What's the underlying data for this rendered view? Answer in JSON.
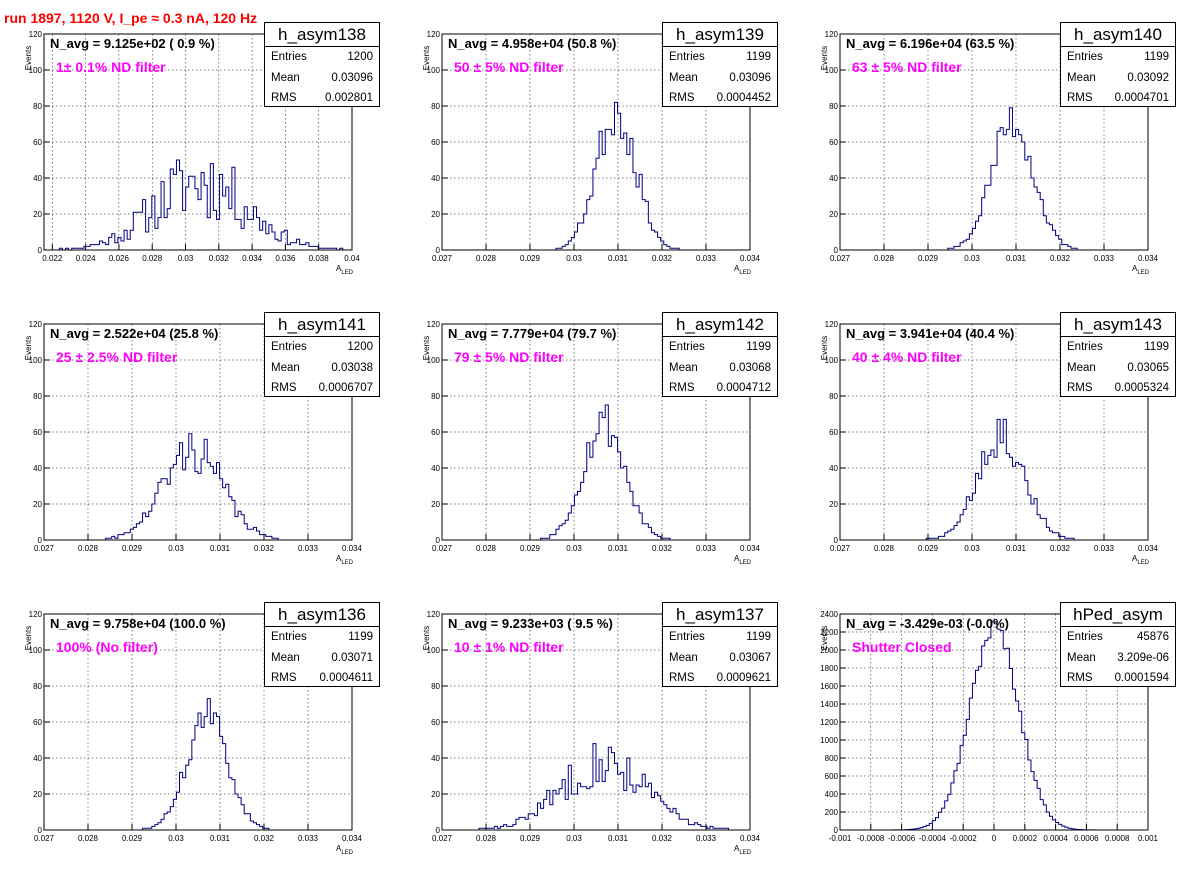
{
  "page_title": "run 1897,  1120 V, I_pe ≈ 0.3 nA, 120 Hz",
  "stat_labels": {
    "entries": "Entries",
    "mean": "Mean",
    "rms": "RMS"
  },
  "colors": {
    "histogram": "#000080",
    "grid": "#000000",
    "filter_text": "#ff00ff",
    "title_text": "#ff0000"
  },
  "chart_data": [
    {
      "type": "bar",
      "hist_name": "h_asym138",
      "navg": "N_avg = 9.125e+02 ( 0.9 %)",
      "filter": "1± 0.1% ND filter",
      "entries": "1200",
      "mean": "0.03096",
      "rms": "0.002801",
      "xlabel": "A",
      "xlabel_sub": "LED",
      "ylabel": "Events",
      "xlim": [
        0.0215,
        0.04
      ],
      "ylim": [
        0,
        120
      ],
      "xticks": [
        0.022,
        0.024,
        0.026,
        0.028,
        0.03,
        0.032,
        0.034,
        0.036,
        0.038,
        0.04
      ],
      "xtick_labels": [
        "0.022",
        "0.024",
        "0.026",
        "0.028",
        "0.03",
        "0.032",
        "0.034",
        "0.036",
        "0.038",
        "0.04"
      ],
      "yticks": [
        0,
        20,
        40,
        60,
        80,
        100,
        120
      ],
      "ytick_labels": [
        "0",
        "20",
        "40",
        "60",
        "80",
        "100",
        "120"
      ],
      "grid": true,
      "peak": {
        "center": 0.0309,
        "sigma": 0.0028,
        "height": 38,
        "noise": 0.35,
        "seed": 11
      }
    },
    {
      "type": "bar",
      "hist_name": "h_asym139",
      "navg": "N_avg = 4.958e+04 (50.8 %)",
      "filter": "50 ± 5% ND filter",
      "entries": "1199",
      "mean": "0.03096",
      "rms": "0.0004452",
      "xlabel": "A",
      "xlabel_sub": "LED",
      "ylabel": "Events",
      "xlim": [
        0.027,
        0.034
      ],
      "ylim": [
        0,
        120
      ],
      "xticks": [
        0.027,
        0.028,
        0.029,
        0.03,
        0.031,
        0.032,
        0.033,
        0.034
      ],
      "xtick_labels": [
        "0.027",
        "0.028",
        "0.029",
        "0.03",
        "0.031",
        "0.032",
        "0.033",
        "0.034"
      ],
      "yticks": [
        0,
        20,
        40,
        60,
        80,
        100,
        120
      ],
      "ytick_labels": [
        "0",
        "20",
        "40",
        "60",
        "80",
        "100",
        "120"
      ],
      "grid": true,
      "peak": {
        "center": 0.03096,
        "sigma": 0.000445,
        "height": 78,
        "noise": 0.12,
        "seed": 23
      }
    },
    {
      "type": "bar",
      "hist_name": "h_asym140",
      "navg": "N_avg = 6.196e+04 (63.5 %)",
      "filter": "63 ± 5% ND filter",
      "entries": "1199",
      "mean": "0.03092",
      "rms": "0.0004701",
      "xlabel": "A",
      "xlabel_sub": "LED",
      "ylabel": "Events",
      "xlim": [
        0.027,
        0.034
      ],
      "ylim": [
        0,
        120
      ],
      "xticks": [
        0.027,
        0.028,
        0.029,
        0.03,
        0.031,
        0.032,
        0.033,
        0.034
      ],
      "xtick_labels": [
        "0.027",
        "0.028",
        "0.029",
        "0.03",
        "0.031",
        "0.032",
        "0.033",
        "0.034"
      ],
      "yticks": [
        0,
        20,
        40,
        60,
        80,
        100,
        120
      ],
      "ytick_labels": [
        "0",
        "20",
        "40",
        "60",
        "80",
        "100",
        "120"
      ],
      "grid": true,
      "peak": {
        "center": 0.03092,
        "sigma": 0.00047,
        "height": 72,
        "noise": 0.1,
        "seed": 37
      }
    },
    {
      "type": "bar",
      "hist_name": "h_asym141",
      "navg": "N_avg = 2.522e+04 (25.8 %)",
      "filter": "25 ± 2.5% ND filter",
      "entries": "1200",
      "mean": "0.03038",
      "rms": "0.0006707",
      "xlabel": "A",
      "xlabel_sub": "LED",
      "ylabel": "Events",
      "xlim": [
        0.027,
        0.034
      ],
      "ylim": [
        0,
        120
      ],
      "xticks": [
        0.027,
        0.028,
        0.029,
        0.03,
        0.031,
        0.032,
        0.033,
        0.034
      ],
      "xtick_labels": [
        "0.027",
        "0.028",
        "0.029",
        "0.03",
        "0.031",
        "0.032",
        "0.033",
        "0.034"
      ],
      "yticks": [
        0,
        20,
        40,
        60,
        80,
        100,
        120
      ],
      "ytick_labels": [
        "0",
        "20",
        "40",
        "60",
        "80",
        "100",
        "120"
      ],
      "grid": true,
      "peak": {
        "center": 0.03038,
        "sigma": 0.00067,
        "height": 50,
        "noise": 0.16,
        "seed": 41
      }
    },
    {
      "type": "bar",
      "hist_name": "h_asym142",
      "navg": "N_avg = 7.779e+04 (79.7 %)",
      "filter": "79 ± 5% ND filter",
      "entries": "1199",
      "mean": "0.03068",
      "rms": "0.0004712",
      "xlabel": "A",
      "xlabel_sub": "LED",
      "ylabel": "Events",
      "xlim": [
        0.027,
        0.034
      ],
      "ylim": [
        0,
        120
      ],
      "xticks": [
        0.027,
        0.028,
        0.029,
        0.03,
        0.031,
        0.032,
        0.033,
        0.034
      ],
      "xtick_labels": [
        "0.027",
        "0.028",
        "0.029",
        "0.03",
        "0.031",
        "0.032",
        "0.033",
        "0.034"
      ],
      "yticks": [
        0,
        20,
        40,
        60,
        80,
        100,
        120
      ],
      "ytick_labels": [
        "0",
        "20",
        "40",
        "60",
        "80",
        "100",
        "120"
      ],
      "grid": true,
      "peak": {
        "center": 0.03068,
        "sigma": 0.00047,
        "height": 66,
        "noise": 0.12,
        "seed": 53
      }
    },
    {
      "type": "bar",
      "hist_name": "h_asym143",
      "navg": "N_avg = 3.941e+04 (40.4 %)",
      "filter": "40 ± 4% ND filter",
      "entries": "1199",
      "mean": "0.03065",
      "rms": "0.0005324",
      "xlabel": "A",
      "xlabel_sub": "LED",
      "ylabel": "Events",
      "xlim": [
        0.027,
        0.034
      ],
      "ylim": [
        0,
        120
      ],
      "xticks": [
        0.027,
        0.028,
        0.029,
        0.03,
        0.031,
        0.032,
        0.033,
        0.034
      ],
      "xtick_labels": [
        "0.027",
        "0.028",
        "0.029",
        "0.03",
        "0.031",
        "0.032",
        "0.033",
        "0.034"
      ],
      "yticks": [
        0,
        20,
        40,
        60,
        80,
        100,
        120
      ],
      "ytick_labels": [
        "0",
        "20",
        "40",
        "60",
        "80",
        "100",
        "120"
      ],
      "grid": true,
      "peak": {
        "center": 0.03065,
        "sigma": 0.00053,
        "height": 60,
        "noise": 0.14,
        "seed": 67
      }
    },
    {
      "type": "bar",
      "hist_name": "h_asym136",
      "navg": "N_avg = 9.758e+04 (100.0 %)",
      "filter": "100% (No filter)",
      "entries": "1199",
      "mean": "0.03071",
      "rms": "0.0004611",
      "xlabel": "A",
      "xlabel_sub": "LED",
      "ylabel": "Events",
      "xlim": [
        0.027,
        0.034
      ],
      "ylim": [
        0,
        120
      ],
      "xticks": [
        0.027,
        0.028,
        0.029,
        0.03,
        0.031,
        0.032,
        0.033,
        0.034
      ],
      "xtick_labels": [
        "0.027",
        "0.028",
        "0.029",
        "0.03",
        "0.031",
        "0.032",
        "0.033",
        "0.034"
      ],
      "yticks": [
        0,
        20,
        40,
        60,
        80,
        100,
        120
      ],
      "ytick_labels": [
        "0",
        "20",
        "40",
        "60",
        "80",
        "100",
        "120"
      ],
      "grid": true,
      "peak": {
        "center": 0.03071,
        "sigma": 0.00046,
        "height": 64,
        "noise": 0.1,
        "seed": 71
      }
    },
    {
      "type": "bar",
      "hist_name": "h_asym137",
      "navg": "N_avg = 9.233e+03 ( 9.5 %)",
      "filter": "10 ± 1% ND filter",
      "entries": "1199",
      "mean": "0.03067",
      "rms": "0.0009621",
      "xlabel": "A",
      "xlabel_sub": "LED",
      "ylabel": "Events",
      "xlim": [
        0.027,
        0.034
      ],
      "ylim": [
        0,
        120
      ],
      "xticks": [
        0.027,
        0.028,
        0.029,
        0.03,
        0.031,
        0.032,
        0.033,
        0.034
      ],
      "xtick_labels": [
        "0.027",
        "0.028",
        "0.029",
        "0.03",
        "0.031",
        "0.032",
        "0.033",
        "0.034"
      ],
      "yticks": [
        0,
        20,
        40,
        60,
        80,
        100,
        120
      ],
      "ytick_labels": [
        "0",
        "20",
        "40",
        "60",
        "80",
        "100",
        "120"
      ],
      "grid": true,
      "peak": {
        "center": 0.03067,
        "sigma": 0.00096,
        "height": 38,
        "noise": 0.22,
        "seed": 83
      }
    },
    {
      "type": "bar",
      "hist_name": "hPed_asym",
      "navg": "N_avg = -3.429e-03 (-0.0%)",
      "filter": "Shutter Closed",
      "entries": "45876",
      "mean": "3.209e-06",
      "rms": "0.0001594",
      "xlabel": "",
      "xlabel_sub": "",
      "ylabel": "Events",
      "xlim": [
        -0.001,
        0.001
      ],
      "ylim": [
        0,
        2400
      ],
      "xticks": [
        -0.001,
        -0.0008,
        -0.0006,
        -0.0004,
        -0.0002,
        0,
        0.0002,
        0.0004,
        0.0006,
        0.0008,
        0.001
      ],
      "xtick_labels": [
        "-0.001",
        "-0.0008",
        "-0.0006",
        "-0.0004",
        "-0.0002",
        "0",
        "0.0002",
        "0.0004",
        "0.0006",
        "0.0008",
        "0.001"
      ],
      "yticks": [
        0,
        200,
        400,
        600,
        800,
        1000,
        1200,
        1400,
        1600,
        1800,
        2000,
        2200,
        2400
      ],
      "ytick_labels": [
        "0",
        "200",
        "400",
        "600",
        "800",
        "1000",
        "1200",
        "1400",
        "1600",
        "1800",
        "2000",
        "2200",
        "2400"
      ],
      "grid": true,
      "peak": {
        "center": 3.2e-06,
        "sigma": 0.000159,
        "height": 2250,
        "noise": 0.03,
        "seed": 97
      }
    }
  ]
}
